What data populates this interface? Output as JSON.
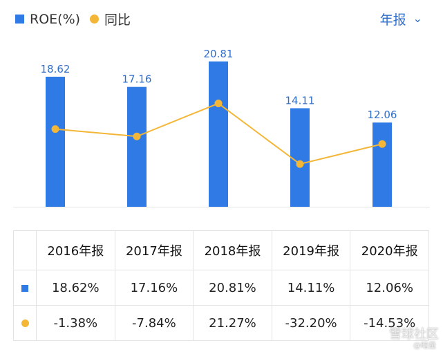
{
  "legend": {
    "bar_label": "ROE(%)",
    "line_label": "同比",
    "bar_color": "#2f7ae5",
    "line_color": "#f3b636"
  },
  "period_selector": {
    "label": "年报"
  },
  "chart_data": {
    "type": "bar",
    "categories": [
      "2016年报",
      "2017年报",
      "2018年报",
      "2019年报",
      "2020年报"
    ],
    "series": [
      {
        "name": "ROE(%)",
        "type": "bar",
        "values": [
          18.62,
          17.16,
          20.81,
          14.11,
          12.06
        ],
        "labels": [
          "18.62",
          "17.16",
          "20.81",
          "14.11",
          "12.06"
        ]
      },
      {
        "name": "同比",
        "type": "line",
        "values": [
          -1.38,
          -7.84,
          21.27,
          -32.2,
          -14.53
        ]
      }
    ]
  },
  "table": {
    "headers": [
      "2016年报",
      "2017年报",
      "2018年报",
      "2019年报",
      "2020年报"
    ],
    "roe_row": [
      "18.62%",
      "17.16%",
      "20.81%",
      "14.11%",
      "12.06%"
    ],
    "yoy_row": [
      "-1.38%",
      "-7.84%",
      "21.27%",
      "-32.20%",
      "-14.53%"
    ]
  },
  "watermark": {
    "text": "雪球社区",
    "handle": "@暗量"
  }
}
